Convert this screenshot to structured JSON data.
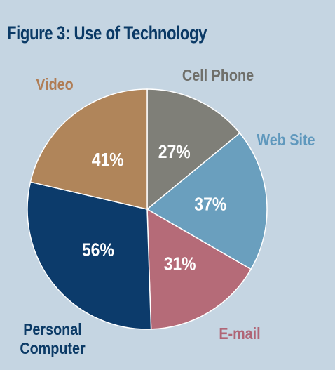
{
  "title": "Figure 3: Use of Technology",
  "colors": {
    "background": "#c5d5e2",
    "title": "#0b3a66",
    "cell_phone": "#7f7f78",
    "web_site": "#6a9fbe",
    "e_mail": "#b56b78",
    "personal_computer": "#0c3b6b",
    "video": "#b0855a"
  },
  "chart_data": {
    "type": "pie",
    "title": "Figure 3: Use of Technology",
    "start_angle_deg": 0,
    "direction": "clockwise",
    "slices": [
      {
        "label": "Cell Phone",
        "value": 27,
        "display": "27%",
        "color": "#7f7f78",
        "label_color": "#6f6f6a"
      },
      {
        "label": "Web Site",
        "value": 37,
        "display": "37%",
        "color": "#6a9fbe",
        "label_color": "#5f98bd"
      },
      {
        "label": "E-mail",
        "value": 31,
        "display": "31%",
        "color": "#b56b78",
        "label_color": "#b06576"
      },
      {
        "label": "Personal Computer",
        "value": 56,
        "display": "56%",
        "color": "#0c3b6b",
        "label_color": "#0b3a66"
      },
      {
        "label": "Video",
        "value": 41,
        "display": "41%",
        "color": "#b0855a",
        "label_color": "#b07d55"
      }
    ]
  }
}
